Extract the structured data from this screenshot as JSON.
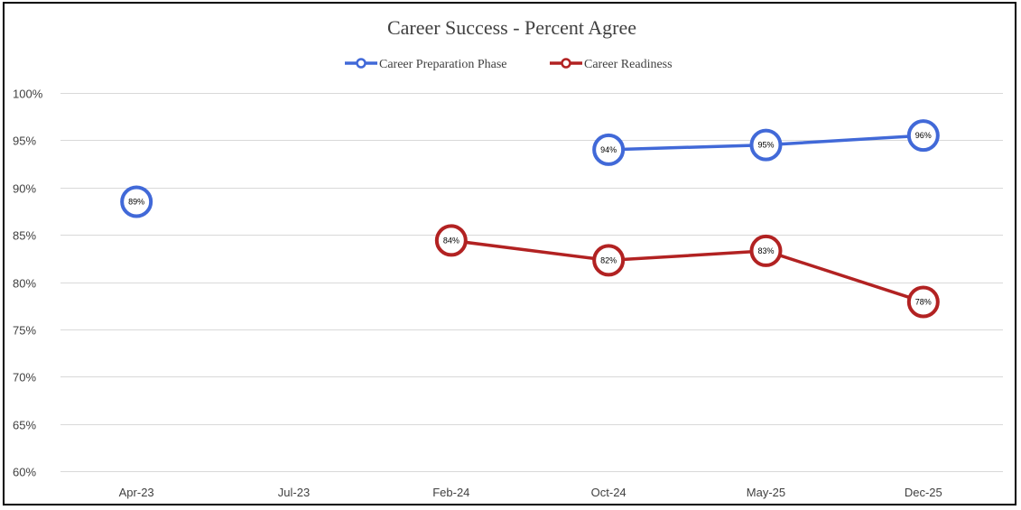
{
  "chart_data": {
    "type": "line",
    "title": "Career Success - Percent Agree",
    "categories": [
      "Apr-23",
      "Jul-23",
      "Feb-24",
      "Oct-24",
      "May-25",
      "Dec-25"
    ],
    "ylim": [
      60,
      100
    ],
    "y_ticks": [
      "100%",
      "95%",
      "90%",
      "85%",
      "80%",
      "75%",
      "70%",
      "65%",
      "60%"
    ],
    "grid": true,
    "legend_position": "top",
    "series": [
      {
        "name": "Career Preparation Phase",
        "color": "#4169d8",
        "values": [
          88.5,
          null,
          null,
          94,
          94.5,
          95.5
        ],
        "labels": [
          "89%",
          null,
          null,
          "94%",
          "95%",
          "96%"
        ]
      },
      {
        "name": "Career Readiness",
        "color": "#b22222",
        "values": [
          null,
          null,
          84.4,
          82.3,
          83.3,
          77.9
        ],
        "labels": [
          null,
          null,
          "84%",
          "82%",
          "83%",
          "78%"
        ]
      }
    ]
  }
}
